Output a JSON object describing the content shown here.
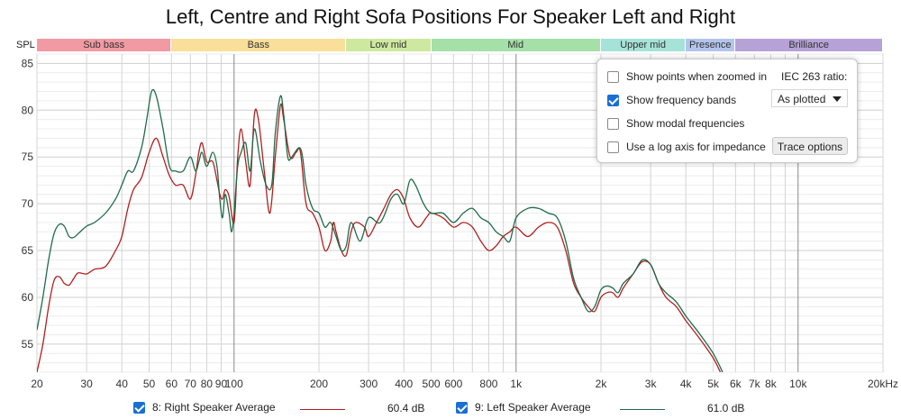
{
  "title": "Left, Centre and Right Sofa Positions For Speaker Left and Right",
  "spl_label": "SPL",
  "freq_bands": [
    {
      "label": "Sub bass",
      "from": 20,
      "to": 60,
      "color": "#f29aa3"
    },
    {
      "label": "Bass",
      "from": 60,
      "to": 250,
      "color": "#f9df9a"
    },
    {
      "label": "Low mid",
      "from": 250,
      "to": 500,
      "color": "#cfe89f"
    },
    {
      "label": "Mid",
      "from": 500,
      "to": 2000,
      "color": "#a5e0a8"
    },
    {
      "label": "Upper mid",
      "from": 2000,
      "to": 4000,
      "color": "#a5e2d8"
    },
    {
      "label": "Presence",
      "from": 4000,
      "to": 6000,
      "color": "#b3c4ec"
    },
    {
      "label": "Brilliance",
      "from": 6000,
      "to": 20000,
      "color": "#b6a2d6"
    }
  ],
  "options_panel": {
    "options": [
      {
        "label": "Show points when zoomed in",
        "checked": false
      },
      {
        "label": "Show frequency bands",
        "checked": true
      },
      {
        "label": "Show modal frequencies",
        "checked": false
      },
      {
        "label": "Use a log axis for impedance",
        "checked": false
      }
    ],
    "iec_label": "IEC 263 ratio:",
    "iec_value": "As plotted",
    "trace_button": "Trace options"
  },
  "legend": [
    {
      "label": "8: Right Speaker Average",
      "value": "60.4 dB",
      "checked": true,
      "color": "#b0201f"
    },
    {
      "label": "9: Left Speaker Average",
      "value": "61.0 dB",
      "checked": true,
      "color": "#1f6b4a"
    }
  ],
  "chart_data": {
    "type": "line",
    "x_scale": "log",
    "xlim": [
      20,
      20000
    ],
    "ylim": [
      52,
      86
    ],
    "grid": true,
    "x_ticks": [
      {
        "value": 20,
        "label": "20"
      },
      {
        "value": 30,
        "label": "30"
      },
      {
        "value": 40,
        "label": "40"
      },
      {
        "value": 50,
        "label": "50"
      },
      {
        "value": 60,
        "label": "60"
      },
      {
        "value": 70,
        "label": "70"
      },
      {
        "value": 80,
        "label": "80"
      },
      {
        "value": 90,
        "label": "90"
      },
      {
        "value": 100,
        "label": "100"
      },
      {
        "value": 200,
        "label": "200"
      },
      {
        "value": 300,
        "label": "300"
      },
      {
        "value": 400,
        "label": "400"
      },
      {
        "value": 500,
        "label": "500"
      },
      {
        "value": 600,
        "label": "600"
      },
      {
        "value": 800,
        "label": "800"
      },
      {
        "value": 1000,
        "label": "1k"
      },
      {
        "value": 2000,
        "label": "2k"
      },
      {
        "value": 3000,
        "label": "3k"
      },
      {
        "value": 4000,
        "label": "4k"
      },
      {
        "value": 5000,
        "label": "5k"
      },
      {
        "value": 6000,
        "label": "6k"
      },
      {
        "value": 7000,
        "label": "7k"
      },
      {
        "value": 8000,
        "label": "8k"
      },
      {
        "value": 10000,
        "label": "10k"
      },
      {
        "value": 20000,
        "label": "20kHz"
      }
    ],
    "y_ticks": [
      85,
      80,
      75,
      70,
      65,
      60,
      55
    ],
    "series": [
      {
        "name": "8: Right Speaker Average",
        "color": "#b0201f",
        "points": [
          [
            20,
            52
          ],
          [
            21,
            55
          ],
          [
            22,
            59
          ],
          [
            23,
            61.8
          ],
          [
            24,
            62.2
          ],
          [
            25,
            61.5
          ],
          [
            26,
            61.3
          ],
          [
            27,
            62
          ],
          [
            28,
            62.6
          ],
          [
            30,
            62.5
          ],
          [
            32,
            63
          ],
          [
            35,
            63.3
          ],
          [
            38,
            65
          ],
          [
            40,
            66.5
          ],
          [
            42,
            69.5
          ],
          [
            44,
            71.5
          ],
          [
            47,
            72.8
          ],
          [
            50,
            75.5
          ],
          [
            53,
            77
          ],
          [
            56,
            75
          ],
          [
            59,
            73
          ],
          [
            62,
            72
          ],
          [
            66,
            72
          ],
          [
            70,
            70.5
          ],
          [
            73,
            73
          ],
          [
            75,
            75.5
          ],
          [
            77,
            76.5
          ],
          [
            80,
            74.5
          ],
          [
            84,
            74.5
          ],
          [
            87,
            72.5
          ],
          [
            89,
            71
          ],
          [
            91,
            70.5
          ],
          [
            93,
            71.5
          ],
          [
            96,
            70.8
          ],
          [
            100,
            68
          ],
          [
            103,
            75
          ],
          [
            106,
            78
          ],
          [
            110,
            74.5
          ],
          [
            114,
            72
          ],
          [
            118,
            79.5
          ],
          [
            122,
            79
          ],
          [
            128,
            73.5
          ],
          [
            134,
            69
          ],
          [
            140,
            75
          ],
          [
            146,
            80.5
          ],
          [
            150,
            79
          ],
          [
            158,
            75
          ],
          [
            166,
            75.5
          ],
          [
            172,
            75.5
          ],
          [
            180,
            70
          ],
          [
            190,
            69
          ],
          [
            200,
            67.5
          ],
          [
            210,
            65
          ],
          [
            220,
            66
          ],
          [
            225,
            68
          ],
          [
            230,
            67
          ],
          [
            240,
            65
          ],
          [
            250,
            64.5
          ],
          [
            260,
            67
          ],
          [
            270,
            68
          ],
          [
            290,
            67.5
          ],
          [
            300,
            66.5
          ],
          [
            320,
            68
          ],
          [
            340,
            69.5
          ],
          [
            360,
            71
          ],
          [
            380,
            71.5
          ],
          [
            400,
            70.5
          ],
          [
            420,
            68.5
          ],
          [
            450,
            67.5
          ],
          [
            480,
            68.5
          ],
          [
            500,
            69
          ],
          [
            550,
            68.5
          ],
          [
            600,
            67.5
          ],
          [
            650,
            68
          ],
          [
            700,
            67.5
          ],
          [
            750,
            66
          ],
          [
            800,
            65
          ],
          [
            850,
            65.5
          ],
          [
            900,
            66.5
          ],
          [
            950,
            67
          ],
          [
            1000,
            67.5
          ],
          [
            1100,
            66.5
          ],
          [
            1200,
            67.5
          ],
          [
            1300,
            68
          ],
          [
            1400,
            67.5
          ],
          [
            1500,
            65
          ],
          [
            1600,
            61.5
          ],
          [
            1700,
            60
          ],
          [
            1800,
            59
          ],
          [
            1900,
            58.5
          ],
          [
            2000,
            60
          ],
          [
            2100,
            60.5
          ],
          [
            2200,
            60.5
          ],
          [
            2300,
            60
          ],
          [
            2400,
            61
          ],
          [
            2600,
            62.5
          ],
          [
            2800,
            63.8
          ],
          [
            3000,
            63.5
          ],
          [
            3200,
            61.5
          ],
          [
            3400,
            60
          ],
          [
            3700,
            59
          ],
          [
            4000,
            57.5
          ],
          [
            4500,
            55.5
          ],
          [
            5000,
            53.5
          ],
          [
            5300,
            52
          ]
        ]
      },
      {
        "name": "9: Left Speaker Average",
        "color": "#1f6b4a",
        "points": [
          [
            20,
            56.5
          ],
          [
            21,
            60
          ],
          [
            22,
            64
          ],
          [
            23,
            66.8
          ],
          [
            24,
            67.8
          ],
          [
            25,
            67.6
          ],
          [
            26,
            66.5
          ],
          [
            27,
            66.4
          ],
          [
            28,
            66.8
          ],
          [
            30,
            67.6
          ],
          [
            32,
            68
          ],
          [
            35,
            69
          ],
          [
            38,
            70.5
          ],
          [
            40,
            72
          ],
          [
            42,
            73.5
          ],
          [
            44,
            73.5
          ],
          [
            47,
            76
          ],
          [
            49,
            79
          ],
          [
            51,
            82
          ],
          [
            53,
            81.5
          ],
          [
            56,
            78
          ],
          [
            59,
            74
          ],
          [
            62,
            73.5
          ],
          [
            66,
            73.5
          ],
          [
            70,
            75
          ],
          [
            73,
            73.5
          ],
          [
            75,
            74.5
          ],
          [
            77,
            75.5
          ],
          [
            80,
            74
          ],
          [
            84,
            75.5
          ],
          [
            87,
            74
          ],
          [
            89,
            70.5
          ],
          [
            91,
            68.5
          ],
          [
            93,
            71
          ],
          [
            96,
            69
          ],
          [
            98,
            67
          ],
          [
            100,
            69
          ],
          [
            103,
            74
          ],
          [
            106,
            75.5
          ],
          [
            110,
            76.5
          ],
          [
            114,
            73.5
          ],
          [
            118,
            78
          ],
          [
            124,
            74.5
          ],
          [
            130,
            72
          ],
          [
            136,
            72
          ],
          [
            140,
            77.5
          ],
          [
            146,
            81.5
          ],
          [
            150,
            79.5
          ],
          [
            155,
            75
          ],
          [
            160,
            75
          ],
          [
            170,
            76
          ],
          [
            175,
            75
          ],
          [
            180,
            72
          ],
          [
            190,
            69.5
          ],
          [
            200,
            69
          ],
          [
            210,
            67.5
          ],
          [
            220,
            68
          ],
          [
            230,
            66.5
          ],
          [
            240,
            65
          ],
          [
            250,
            65.5
          ],
          [
            260,
            68
          ],
          [
            280,
            66
          ],
          [
            300,
            68.5
          ],
          [
            330,
            68
          ],
          [
            360,
            70.5
          ],
          [
            380,
            71
          ],
          [
            400,
            70
          ],
          [
            420,
            72.5
          ],
          [
            440,
            72
          ],
          [
            470,
            70
          ],
          [
            500,
            69
          ],
          [
            550,
            69
          ],
          [
            600,
            68
          ],
          [
            650,
            69
          ],
          [
            700,
            69.5
          ],
          [
            750,
            68.5
          ],
          [
            800,
            68
          ],
          [
            850,
            67
          ],
          [
            900,
            66.5
          ],
          [
            950,
            66
          ],
          [
            1000,
            68.5
          ],
          [
            1100,
            69.5
          ],
          [
            1200,
            69.5
          ],
          [
            1300,
            69
          ],
          [
            1400,
            68.5
          ],
          [
            1500,
            66
          ],
          [
            1600,
            62
          ],
          [
            1700,
            60
          ],
          [
            1800,
            58.5
          ],
          [
            1900,
            59
          ],
          [
            2000,
            60.8
          ],
          [
            2100,
            61.2
          ],
          [
            2200,
            61
          ],
          [
            2300,
            60.5
          ],
          [
            2400,
            61.5
          ],
          [
            2600,
            62.5
          ],
          [
            2800,
            64
          ],
          [
            3000,
            63.5
          ],
          [
            3200,
            61.5
          ],
          [
            3400,
            60.5
          ],
          [
            3700,
            59.5
          ],
          [
            4000,
            58
          ],
          [
            4500,
            56
          ],
          [
            5000,
            54
          ],
          [
            5400,
            52
          ]
        ]
      }
    ]
  }
}
